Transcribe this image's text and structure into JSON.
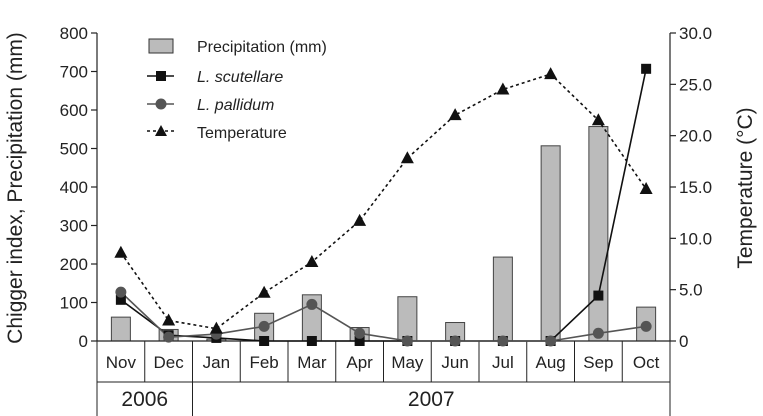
{
  "chart_data": {
    "type": "bar+line",
    "categories": [
      "Nov",
      "Dec",
      "Jan",
      "Feb",
      "Mar",
      "Apr",
      "May",
      "Jun",
      "Jul",
      "Aug",
      "Sep",
      "Oct"
    ],
    "year_groups": [
      {
        "label": "2006",
        "span": [
          0,
          1
        ]
      },
      {
        "label": "2007",
        "span": [
          2,
          11
        ]
      }
    ],
    "ylabel_left": "Chigger index, Precipitation (mm)",
    "ylabel_right": "Temperature (°C)",
    "ylim_left": [
      0,
      800
    ],
    "ylim_right": [
      0,
      30
    ],
    "yticks_left": [
      "0",
      "100",
      "200",
      "300",
      "400",
      "500",
      "600",
      "700",
      "800"
    ],
    "yticks_right": [
      "0",
      "5.0",
      "10.0",
      "15.0",
      "20.0",
      "25.0",
      "30.0"
    ],
    "series": [
      {
        "name": "Precipitation (mm)",
        "kind": "bar",
        "axis": "left",
        "color": "#bbbbbb",
        "values": [
          62,
          30,
          5,
          72,
          120,
          35,
          115,
          48,
          218,
          507,
          557,
          88
        ]
      },
      {
        "name": "L. scutellare",
        "kind": "line",
        "marker": "square",
        "axis": "left",
        "color": "#111111",
        "values": [
          107,
          15,
          8,
          0,
          0,
          0,
          0,
          0,
          0,
          0,
          118,
          707
        ]
      },
      {
        "name": "L. pallidum",
        "kind": "line",
        "marker": "circle",
        "axis": "left",
        "color": "#555555",
        "values": [
          127,
          10,
          18,
          38,
          95,
          20,
          0,
          0,
          0,
          0,
          20,
          38
        ]
      },
      {
        "name": "Temperature",
        "kind": "line",
        "marker": "triangle",
        "axis": "right",
        "dashed": true,
        "color": "#111111",
        "values": [
          8.6,
          2.0,
          1.2,
          4.7,
          7.7,
          11.7,
          17.8,
          22.0,
          24.5,
          26.0,
          21.5,
          14.8
        ]
      }
    ],
    "legend": {
      "position": "top-left"
    }
  }
}
